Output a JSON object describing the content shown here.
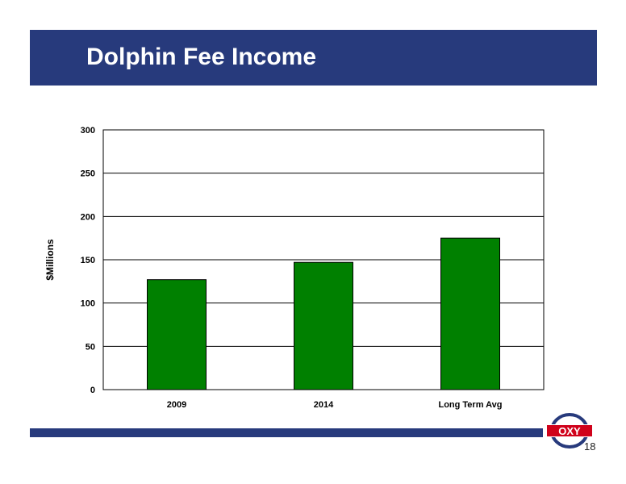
{
  "slide": {
    "title": "Dolphin Fee Income",
    "page_number": "18",
    "logo_text": "OXY"
  },
  "colors": {
    "title_bar": "#273a7c",
    "bar_fill": "#008000",
    "footer_bar": "#273a7c",
    "logo_red": "#d0021b",
    "logo_navy": "#273a7c"
  },
  "chart_data": {
    "type": "bar",
    "categories": [
      "2009",
      "2014",
      "Long Term Avg"
    ],
    "values": [
      127,
      147,
      175
    ],
    "ylabel": "$Millions",
    "ylim": [
      0,
      300
    ],
    "yticks": [
      0,
      50,
      100,
      150,
      200,
      250,
      300
    ],
    "grid": true
  }
}
